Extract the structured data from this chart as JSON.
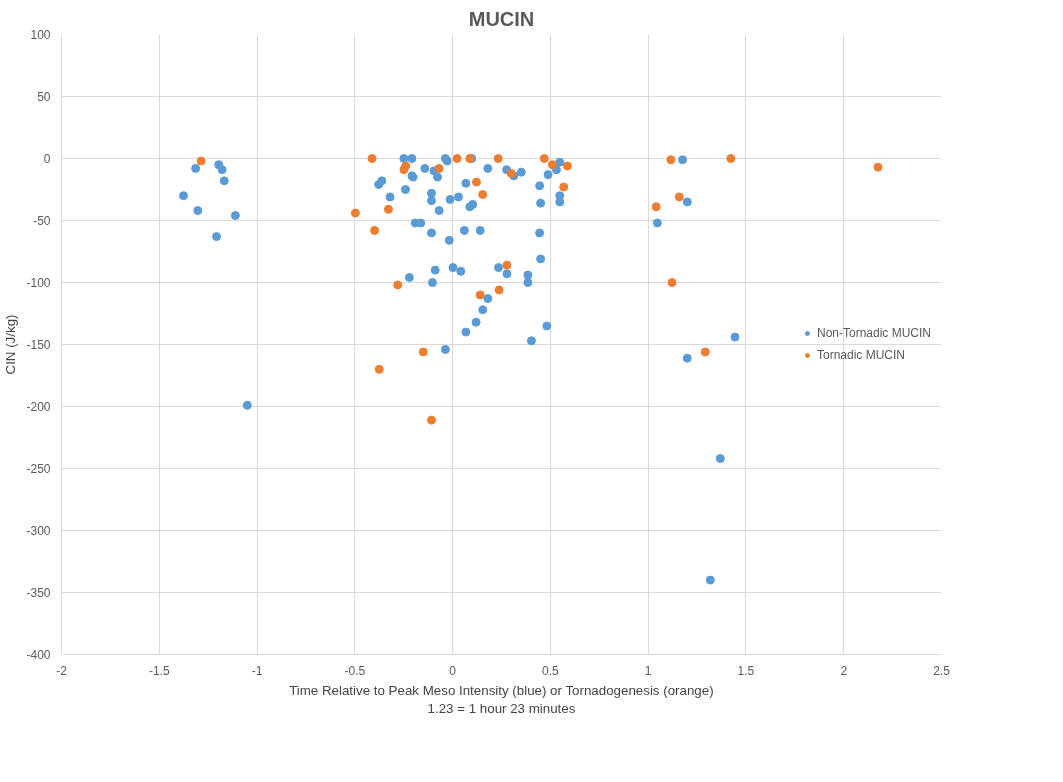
{
  "chart_data": {
    "type": "scatter",
    "title": "MUCIN",
    "xlabel": "Time Relative to Peak Meso Intensity (blue) or Tornadogenesis (orange)\n1.23 = 1 hour 23 minutes",
    "ylabel": "CIN (J/kg)",
    "xlim": [
      -2,
      2.5
    ],
    "xticks": [
      -2,
      -1.5,
      -1,
      -0.5,
      0,
      0.5,
      1,
      1.5,
      2,
      2.5
    ],
    "ylim": [
      -400,
      100
    ],
    "yticks": [
      -400,
      -350,
      -300,
      -250,
      -200,
      -150,
      -100,
      -50,
      0,
      50,
      100
    ],
    "grid": true,
    "legend": "right",
    "marker": "circle",
    "series": [
      {
        "name": "Non-Tornadic MUCIN",
        "color": "#5b9bd5",
        "x": [
          -1.376,
          -1.314,
          -1.303,
          -1.196,
          -1.179,
          -1.168,
          -1.207,
          -1.111,
          -1.05,
          -0.249,
          -0.208,
          -0.037,
          -0.028,
          0.098,
          0.548,
          0.531,
          0.488,
          0.351,
          0.313,
          0.276,
          0.18,
          -0.142,
          -0.095,
          -0.077,
          -0.208,
          -0.202,
          -0.378,
          -0.362,
          -0.32,
          -0.241,
          -0.108,
          -0.108,
          -0.069,
          -0.013,
          0.03,
          0.068,
          0.088,
          0.103,
          0.445,
          0.45,
          0.548,
          0.548,
          -0.191,
          -0.163,
          -0.108,
          -0.017,
          0.06,
          0.141,
          0.445,
          0.45,
          -0.089,
          -0.221,
          -0.103,
          0.002,
          0.042,
          0.235,
          0.278,
          0.385,
          0.385,
          0.18,
          0.154,
          0.12,
          0.068,
          0.482,
          0.403,
          -0.037,
          1.176,
          1.2,
          1.047,
          1.444,
          1.2,
          1.369,
          1.318
        ],
        "values": [
          -30,
          -8,
          -42,
          -5,
          -9,
          -18,
          -63,
          -46,
          -199,
          0,
          0,
          0,
          -2,
          0,
          -3,
          -9,
          -13,
          -11,
          -14,
          -9,
          -8,
          -8,
          -10,
          -15,
          -14,
          -15,
          -21,
          -18,
          -31,
          -25,
          -28,
          -34,
          -42,
          -33,
          -31,
          -20,
          -39,
          -37,
          -22,
          -36,
          -30,
          -35,
          -52,
          -52,
          -60,
          -66,
          -58,
          -58,
          -60,
          -81,
          -90,
          -96,
          -100,
          -88,
          -91,
          -88,
          -93,
          -94,
          -100,
          -113,
          -122,
          -132,
          -140,
          -135,
          -147,
          -154,
          -1,
          -35,
          -52,
          -144,
          -161,
          -242,
          -340
        ]
      },
      {
        "name": "Tornadic MUCIN",
        "color": "#ed7d31",
        "x": [
          -1.286,
          -0.412,
          -0.24,
          -0.249,
          0.023,
          0.088,
          0.233,
          0.469,
          0.51,
          0.587,
          -0.069,
          0.3,
          0.122,
          0.154,
          0.568,
          -0.497,
          -0.328,
          -0.399,
          -0.281,
          0.278,
          0.238,
          0.141,
          -0.15,
          -0.375,
          -0.108,
          1.116,
          1.423,
          2.175,
          1.159,
          1.041,
          1.122,
          1.292
        ],
        "values": [
          -2,
          0,
          -6,
          -9,
          0,
          0,
          0,
          0,
          -5,
          -6,
          -8,
          -12,
          -19,
          -29,
          -23,
          -44,
          -41,
          -58,
          -102,
          -86,
          -106,
          -110,
          -156,
          -170,
          -211,
          -1,
          0,
          -7,
          -31,
          -39,
          -100,
          -156
        ]
      }
    ]
  }
}
